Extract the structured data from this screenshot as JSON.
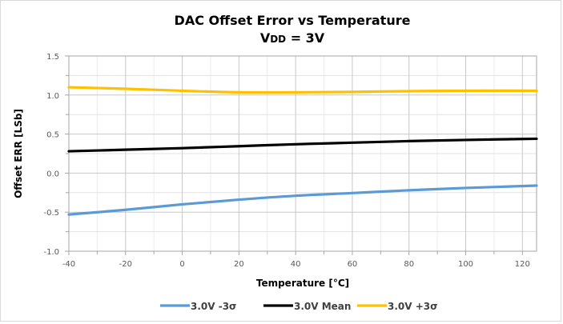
{
  "chart_data": {
    "type": "line",
    "title": "DAC Offset Error vs Temperature",
    "subtitle": {
      "prefix": "V",
      "subscript": "DD",
      "suffix": " = 3V"
    },
    "xlabel": "Temperature [°C]",
    "ylabel": "Offset ERR [LSb]",
    "xlim": [
      -40,
      125
    ],
    "ylim": [
      -1.0,
      1.5
    ],
    "xticks": [
      -40,
      -20,
      0,
      20,
      40,
      60,
      80,
      100,
      120
    ],
    "xtick_labels": [
      "-40",
      "-20",
      "0",
      "20",
      "40",
      "60",
      "80",
      "100",
      "120"
    ],
    "yticks": [
      -1.0,
      -0.5,
      0.0,
      0.5,
      1.0,
      1.5
    ],
    "ytick_labels": [
      "-1.0",
      "-0.5",
      "0.0",
      "0.5",
      "1.0",
      "1.5"
    ],
    "x_minor_step": 10,
    "y_minor_step": 0.25,
    "grid": true,
    "legend_position": "bottom",
    "x": [
      -40,
      -20,
      0,
      20,
      40,
      60,
      80,
      100,
      125
    ],
    "series": [
      {
        "name": "3.0V -3σ",
        "color": "#5b9bd5",
        "values": [
          -0.53,
          -0.47,
          -0.4,
          -0.34,
          -0.29,
          -0.255,
          -0.22,
          -0.19,
          -0.16
        ]
      },
      {
        "name": "3.0V Mean",
        "color": "#000000",
        "values": [
          0.28,
          0.3,
          0.32,
          0.345,
          0.37,
          0.39,
          0.41,
          0.425,
          0.44
        ]
      },
      {
        "name": "3.0V +3σ",
        "color": "#ffc000",
        "values": [
          1.1,
          1.08,
          1.055,
          1.035,
          1.035,
          1.04,
          1.05,
          1.055,
          1.055
        ]
      }
    ]
  }
}
